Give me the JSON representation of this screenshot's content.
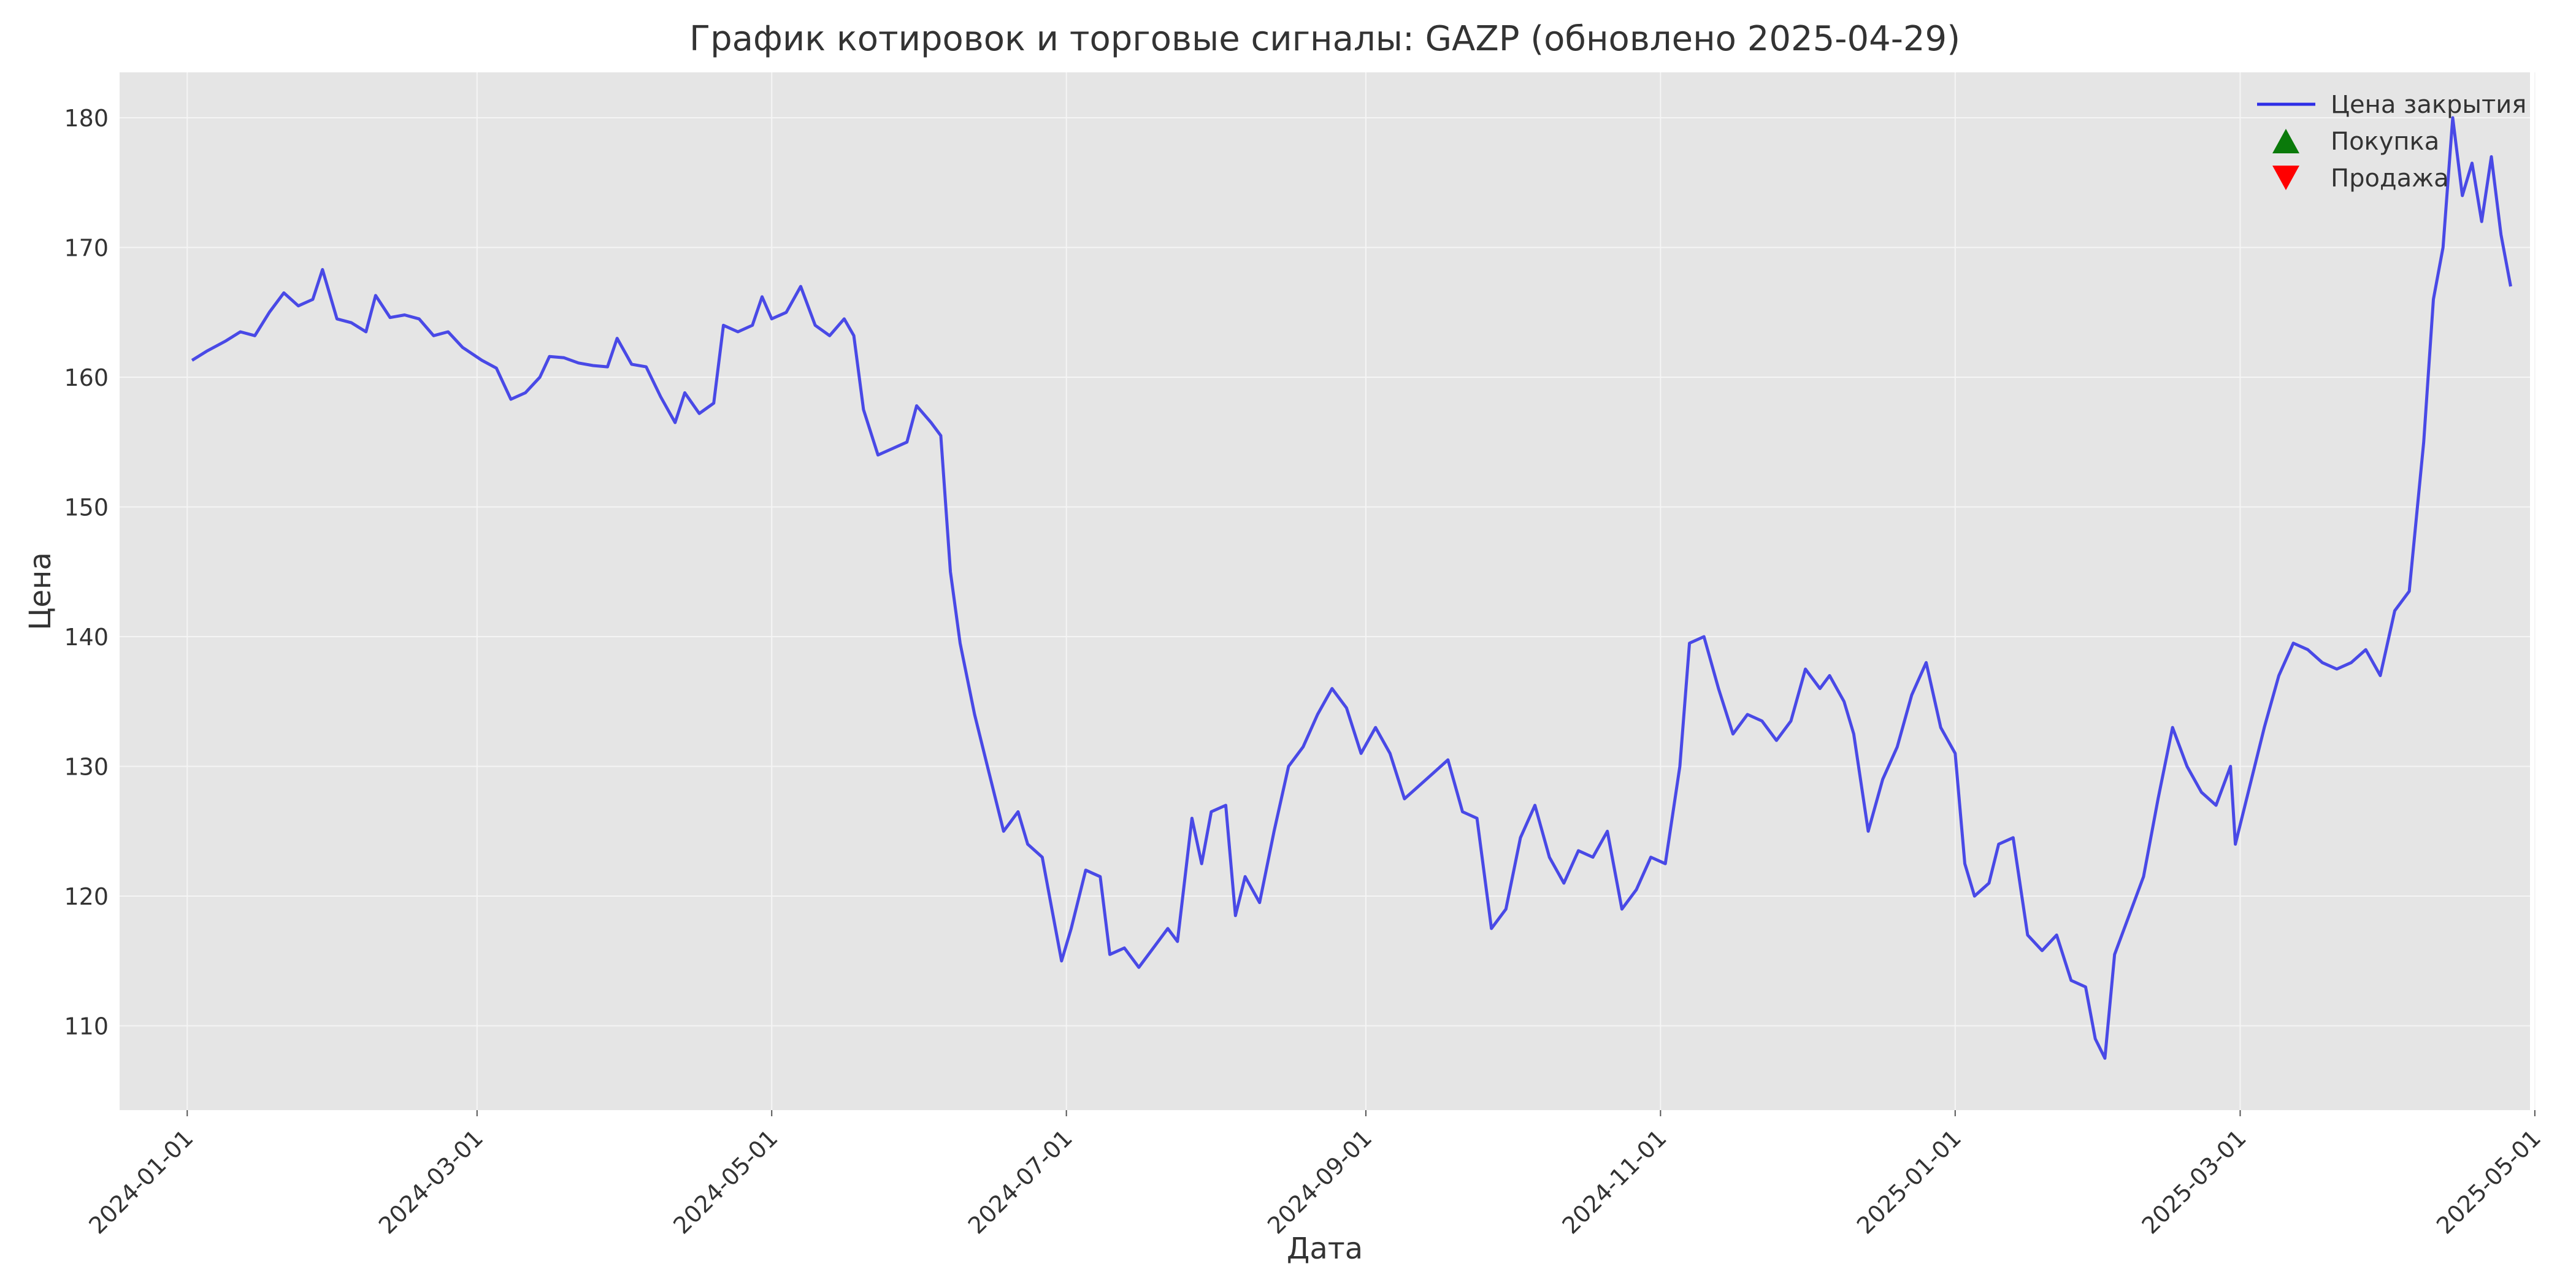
{
  "chart_data": {
    "type": "line",
    "title": "График котировок и торговые сигналы: GAZP (обновлено 2025-04-29)",
    "xlabel": "Дата",
    "ylabel": "Цена",
    "xlim": [
      "2023-12-18",
      "2025-04-30"
    ],
    "ylim": [
      103.5,
      183.5
    ],
    "x_ticks": [
      "2024-01-01",
      "2024-03-01",
      "2024-05-01",
      "2024-07-01",
      "2024-09-01",
      "2024-11-01",
      "2025-01-01",
      "2025-03-01",
      "2025-05-01"
    ],
    "y_ticks": [
      110,
      120,
      130,
      140,
      150,
      160,
      170,
      180
    ],
    "grid": true,
    "legend_position": "top-right",
    "colors": {
      "plot_bg": "#e5e5e5",
      "line": "#2e2ee6",
      "buy": "#0a7a0a",
      "sell": "#ff0000",
      "grid": "#f5f5f5"
    },
    "series": [
      {
        "name": "Цена закрытия",
        "kind": "line",
        "points": [
          [
            "2024-01-02",
            161.3
          ],
          [
            "2024-01-05",
            162.0
          ],
          [
            "2024-01-09",
            162.8
          ],
          [
            "2024-01-12",
            163.5
          ],
          [
            "2024-01-15",
            163.2
          ],
          [
            "2024-01-18",
            165.0
          ],
          [
            "2024-01-21",
            166.5
          ],
          [
            "2024-01-24",
            165.5
          ],
          [
            "2024-01-27",
            166.0
          ],
          [
            "2024-01-29",
            168.3
          ],
          [
            "2024-02-01",
            164.5
          ],
          [
            "2024-02-04",
            164.2
          ],
          [
            "2024-02-07",
            163.5
          ],
          [
            "2024-02-09",
            166.3
          ],
          [
            "2024-02-12",
            164.6
          ],
          [
            "2024-02-15",
            164.8
          ],
          [
            "2024-02-18",
            164.5
          ],
          [
            "2024-02-21",
            163.2
          ],
          [
            "2024-02-24",
            163.5
          ],
          [
            "2024-02-27",
            162.3
          ],
          [
            "2024-03-02",
            161.3
          ],
          [
            "2024-03-05",
            160.7
          ],
          [
            "2024-03-08",
            158.3
          ],
          [
            "2024-03-11",
            158.8
          ],
          [
            "2024-03-14",
            160.0
          ],
          [
            "2024-03-16",
            161.6
          ],
          [
            "2024-03-19",
            161.5
          ],
          [
            "2024-03-22",
            161.1
          ],
          [
            "2024-03-25",
            160.9
          ],
          [
            "2024-03-28",
            160.8
          ],
          [
            "2024-03-30",
            163.0
          ],
          [
            "2024-04-02",
            161.0
          ],
          [
            "2024-04-05",
            160.8
          ],
          [
            "2024-04-08",
            158.5
          ],
          [
            "2024-04-11",
            156.5
          ],
          [
            "2024-04-13",
            158.8
          ],
          [
            "2024-04-16",
            157.2
          ],
          [
            "2024-04-19",
            158.0
          ],
          [
            "2024-04-21",
            164.0
          ],
          [
            "2024-04-24",
            163.5
          ],
          [
            "2024-04-27",
            164.0
          ],
          [
            "2024-04-29",
            166.2
          ],
          [
            "2024-05-01",
            164.5
          ],
          [
            "2024-05-04",
            165.0
          ],
          [
            "2024-05-07",
            167.0
          ],
          [
            "2024-05-10",
            164.0
          ],
          [
            "2024-05-13",
            163.2
          ],
          [
            "2024-05-16",
            164.5
          ],
          [
            "2024-05-18",
            163.2
          ],
          [
            "2024-05-20",
            157.5
          ],
          [
            "2024-05-23",
            154.0
          ],
          [
            "2024-05-26",
            154.5
          ],
          [
            "2024-05-29",
            155.0
          ],
          [
            "2024-05-31",
            157.8
          ],
          [
            "2024-06-03",
            156.5
          ],
          [
            "2024-06-05",
            155.5
          ],
          [
            "2024-06-07",
            145.0
          ],
          [
            "2024-06-09",
            139.5
          ],
          [
            "2024-06-12",
            134.0
          ],
          [
            "2024-06-15",
            129.5
          ],
          [
            "2024-06-18",
            125.0
          ],
          [
            "2024-06-21",
            126.5
          ],
          [
            "2024-06-23",
            124.0
          ],
          [
            "2024-06-26",
            123.0
          ],
          [
            "2024-06-28",
            119.0
          ],
          [
            "2024-06-30",
            115.0
          ],
          [
            "2024-07-02",
            117.5
          ],
          [
            "2024-07-05",
            122.0
          ],
          [
            "2024-07-08",
            121.5
          ],
          [
            "2024-07-10",
            115.5
          ],
          [
            "2024-07-13",
            116.0
          ],
          [
            "2024-07-16",
            114.5
          ],
          [
            "2024-07-19",
            116.0
          ],
          [
            "2024-07-22",
            117.5
          ],
          [
            "2024-07-24",
            116.5
          ],
          [
            "2024-07-27",
            126.0
          ],
          [
            "2024-07-29",
            122.5
          ],
          [
            "2024-07-31",
            126.5
          ],
          [
            "2024-08-03",
            127.0
          ],
          [
            "2024-08-05",
            118.5
          ],
          [
            "2024-08-07",
            121.5
          ],
          [
            "2024-08-10",
            119.5
          ],
          [
            "2024-08-13",
            125.0
          ],
          [
            "2024-08-16",
            130.0
          ],
          [
            "2024-08-19",
            131.5
          ],
          [
            "2024-08-22",
            134.0
          ],
          [
            "2024-08-25",
            136.0
          ],
          [
            "2024-08-28",
            134.5
          ],
          [
            "2024-08-31",
            131.0
          ],
          [
            "2024-09-03",
            133.0
          ],
          [
            "2024-09-06",
            131.0
          ],
          [
            "2024-09-09",
            127.5
          ],
          [
            "2024-09-12",
            128.5
          ],
          [
            "2024-09-15",
            129.5
          ],
          [
            "2024-09-18",
            130.5
          ],
          [
            "2024-09-21",
            126.5
          ],
          [
            "2024-09-24",
            126.0
          ],
          [
            "2024-09-27",
            117.5
          ],
          [
            "2024-09-30",
            119.0
          ],
          [
            "2024-10-03",
            124.5
          ],
          [
            "2024-10-06",
            127.0
          ],
          [
            "2024-10-09",
            123.0
          ],
          [
            "2024-10-12",
            121.0
          ],
          [
            "2024-10-15",
            123.5
          ],
          [
            "2024-10-18",
            123.0
          ],
          [
            "2024-10-21",
            125.0
          ],
          [
            "2024-10-24",
            119.0
          ],
          [
            "2024-10-27",
            120.5
          ],
          [
            "2024-10-30",
            123.0
          ],
          [
            "2024-11-02",
            122.5
          ],
          [
            "2024-11-05",
            130.0
          ],
          [
            "2024-11-07",
            139.5
          ],
          [
            "2024-11-10",
            140.0
          ],
          [
            "2024-11-13",
            136.0
          ],
          [
            "2024-11-16",
            132.5
          ],
          [
            "2024-11-19",
            134.0
          ],
          [
            "2024-11-22",
            133.5
          ],
          [
            "2024-11-25",
            132.0
          ],
          [
            "2024-11-28",
            133.5
          ],
          [
            "2024-12-01",
            137.5
          ],
          [
            "2024-12-04",
            136.0
          ],
          [
            "2024-12-06",
            137.0
          ],
          [
            "2024-12-09",
            135.0
          ],
          [
            "2024-12-11",
            132.5
          ],
          [
            "2024-12-14",
            125.0
          ],
          [
            "2024-12-17",
            129.0
          ],
          [
            "2024-12-20",
            131.5
          ],
          [
            "2024-12-23",
            135.5
          ],
          [
            "2024-12-26",
            138.0
          ],
          [
            "2024-12-29",
            133.0
          ],
          [
            "2025-01-01",
            131.0
          ],
          [
            "2025-01-03",
            122.5
          ],
          [
            "2025-01-05",
            120.0
          ],
          [
            "2025-01-08",
            121.0
          ],
          [
            "2025-01-10",
            124.0
          ],
          [
            "2025-01-13",
            124.5
          ],
          [
            "2025-01-16",
            117.0
          ],
          [
            "2025-01-19",
            115.8
          ],
          [
            "2025-01-22",
            117.0
          ],
          [
            "2025-01-25",
            113.5
          ],
          [
            "2025-01-28",
            113.0
          ],
          [
            "2025-01-30",
            109.0
          ],
          [
            "2025-02-01",
            107.5
          ],
          [
            "2025-02-03",
            115.5
          ],
          [
            "2025-02-06",
            118.5
          ],
          [
            "2025-02-09",
            121.5
          ],
          [
            "2025-02-12",
            127.5
          ],
          [
            "2025-02-15",
            133.0
          ],
          [
            "2025-02-18",
            130.0
          ],
          [
            "2025-02-21",
            128.0
          ],
          [
            "2025-02-24",
            127.0
          ],
          [
            "2025-02-27",
            130.0
          ],
          [
            "2025-02-28",
            124.0
          ],
          [
            "2025-03-03",
            128.5
          ],
          [
            "2025-03-06",
            133.0
          ],
          [
            "2025-03-09",
            137.0
          ],
          [
            "2025-03-12",
            139.5
          ],
          [
            "2025-03-15",
            139.0
          ],
          [
            "2025-03-18",
            138.0
          ],
          [
            "2025-03-21",
            137.5
          ],
          [
            "2025-03-24",
            138.0
          ],
          [
            "2025-03-27",
            139.0
          ],
          [
            "2025-03-30",
            137.0
          ],
          [
            "2025-04-02",
            142.0
          ],
          [
            "2025-04-05",
            143.5
          ],
          [
            "2025-04-08",
            155.0
          ],
          [
            "2025-04-10",
            166.0
          ],
          [
            "2025-04-12",
            170.0
          ],
          [
            "2025-04-14",
            180.0
          ],
          [
            "2025-04-16",
            174.0
          ],
          [
            "2025-04-18",
            176.5
          ],
          [
            "2025-04-20",
            172.0
          ],
          [
            "2025-04-22",
            177.0
          ],
          [
            "2025-04-24",
            171.0
          ],
          [
            "2025-04-26",
            167.0
          ]
        ],
        "note_end": "2025-04-29"
      }
    ]
  }
}
